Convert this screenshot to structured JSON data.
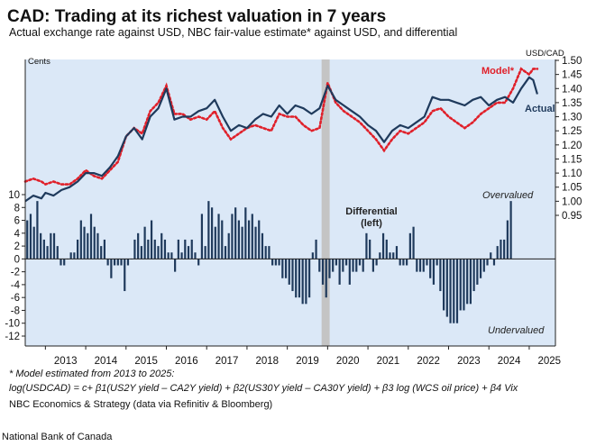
{
  "title": "CAD: Trading at its richest valuation in 7 years",
  "subtitle": "Actual exchange rate against USD, NBC fair-value estimate* against USD, and differential",
  "colors": {
    "panel": "#dbe8f7",
    "actual": "#1f3a5c",
    "model": "#e0202a",
    "bars": "#1f3a5c",
    "covid_band": "#c4c4c4"
  },
  "chart_data": {
    "type": "line+bar",
    "x_range": [
      2012.5,
      2025.65
    ],
    "x_ticks": [
      "2013",
      "2014",
      "2015",
      "2016",
      "2017",
      "2018",
      "2019",
      "2020",
      "2021",
      "2022",
      "2023",
      "2024",
      "2025"
    ],
    "left_axis": {
      "label": "Cents",
      "range": [
        -12,
        10
      ],
      "ticks": [
        "10",
        "8",
        "6",
        "4",
        "2",
        "0",
        "-2",
        "-4",
        "-6",
        "-8",
        "-10",
        "-12"
      ]
    },
    "right_axis": {
      "label": "USD/CAD",
      "range": [
        0.9,
        1.5
      ],
      "ticks": [
        "1.50",
        "1.45",
        "1.40",
        "1.35",
        "1.30",
        "1.25",
        "1.20",
        "1.15",
        "1.10",
        "1.05",
        "1.00",
        "0.95"
      ]
    },
    "shaded_period": [
      2019.85,
      2020.05
    ],
    "series": [
      {
        "name": "Actual",
        "axis": "right",
        "style": "solid",
        "x": [
          2012.5,
          2012.7,
          2012.9,
          2013.0,
          2013.2,
          2013.4,
          2013.6,
          2013.8,
          2014.0,
          2014.2,
          2014.4,
          2014.6,
          2014.8,
          2015.0,
          2015.2,
          2015.4,
          2015.6,
          2015.8,
          2016.0,
          2016.2,
          2016.4,
          2016.6,
          2016.8,
          2017.0,
          2017.2,
          2017.4,
          2017.6,
          2017.8,
          2018.0,
          2018.2,
          2018.4,
          2018.6,
          2018.8,
          2019.0,
          2019.2,
          2019.4,
          2019.6,
          2019.8,
          2020.0,
          2020.2,
          2020.4,
          2020.6,
          2020.8,
          2021.0,
          2021.2,
          2021.4,
          2021.6,
          2021.8,
          2022.0,
          2022.2,
          2022.4,
          2022.6,
          2022.8,
          2023.0,
          2023.2,
          2023.4,
          2023.6,
          2023.8,
          2024.0,
          2024.2,
          2024.4,
          2024.6,
          2024.8,
          2025.0,
          2025.1,
          2025.2
        ],
        "y": [
          1.0,
          1.02,
          1.01,
          1.03,
          1.02,
          1.04,
          1.05,
          1.07,
          1.1,
          1.1,
          1.09,
          1.12,
          1.16,
          1.23,
          1.26,
          1.22,
          1.3,
          1.33,
          1.4,
          1.29,
          1.3,
          1.3,
          1.32,
          1.33,
          1.36,
          1.3,
          1.25,
          1.27,
          1.26,
          1.29,
          1.31,
          1.3,
          1.34,
          1.31,
          1.34,
          1.33,
          1.31,
          1.33,
          1.41,
          1.36,
          1.34,
          1.32,
          1.3,
          1.27,
          1.25,
          1.21,
          1.25,
          1.27,
          1.26,
          1.28,
          1.3,
          1.37,
          1.36,
          1.36,
          1.35,
          1.34,
          1.36,
          1.37,
          1.34,
          1.36,
          1.37,
          1.35,
          1.4,
          1.44,
          1.43,
          1.38
        ]
      },
      {
        "name": "Model*",
        "axis": "right",
        "style": "dotted",
        "x": [
          2012.5,
          2012.7,
          2012.9,
          2013.0,
          2013.2,
          2013.4,
          2013.6,
          2013.8,
          2014.0,
          2014.2,
          2014.4,
          2014.6,
          2014.8,
          2015.0,
          2015.2,
          2015.4,
          2015.6,
          2015.8,
          2016.0,
          2016.2,
          2016.4,
          2016.6,
          2016.8,
          2017.0,
          2017.2,
          2017.4,
          2017.6,
          2017.8,
          2018.0,
          2018.2,
          2018.4,
          2018.6,
          2018.8,
          2019.0,
          2019.2,
          2019.4,
          2019.6,
          2019.8,
          2020.0,
          2020.2,
          2020.4,
          2020.6,
          2020.8,
          2021.0,
          2021.2,
          2021.4,
          2021.6,
          2021.8,
          2022.0,
          2022.2,
          2022.4,
          2022.6,
          2022.8,
          2023.0,
          2023.2,
          2023.4,
          2023.6,
          2023.8,
          2024.0,
          2024.2,
          2024.4,
          2024.6,
          2024.8,
          2025.0,
          2025.1,
          2025.2
        ],
        "y": [
          1.07,
          1.08,
          1.07,
          1.06,
          1.07,
          1.06,
          1.06,
          1.08,
          1.11,
          1.09,
          1.08,
          1.11,
          1.14,
          1.23,
          1.26,
          1.24,
          1.32,
          1.35,
          1.41,
          1.31,
          1.31,
          1.29,
          1.3,
          1.29,
          1.32,
          1.26,
          1.22,
          1.24,
          1.26,
          1.27,
          1.26,
          1.25,
          1.31,
          1.3,
          1.3,
          1.27,
          1.25,
          1.26,
          1.42,
          1.35,
          1.32,
          1.3,
          1.28,
          1.25,
          1.22,
          1.18,
          1.22,
          1.25,
          1.24,
          1.26,
          1.28,
          1.32,
          1.33,
          1.3,
          1.28,
          1.26,
          1.28,
          1.31,
          1.33,
          1.35,
          1.35,
          1.4,
          1.47,
          1.45,
          1.47,
          1.47
        ]
      },
      {
        "name": "Differential (left)",
        "axis": "left",
        "style": "bar",
        "x_start": 2012.55,
        "x_step": 0.0833,
        "values": [
          6,
          7,
          5,
          9,
          4,
          3,
          2,
          4,
          4,
          2,
          -1,
          -1,
          0,
          1,
          1,
          3,
          6,
          5,
          4,
          7,
          5,
          4,
          2,
          3,
          -1,
          -3,
          -1,
          -1,
          -1,
          -5,
          -1,
          0,
          3,
          4,
          2,
          5,
          3,
          6,
          3,
          2,
          4,
          3,
          1,
          1,
          -2,
          3,
          1,
          3,
          2,
          3,
          1,
          -1,
          7,
          2,
          9,
          8,
          5,
          7,
          6,
          2,
          4,
          7,
          8,
          6,
          5,
          8,
          6,
          7,
          5,
          6,
          4,
          2,
          2,
          -1,
          -1,
          -1,
          -3,
          -3,
          -4,
          -5,
          -6,
          -6,
          -7,
          -7,
          -6,
          1,
          3,
          -2,
          -4,
          -6,
          -3,
          -2,
          -1,
          -4,
          -2,
          -1,
          -4,
          -2,
          -2,
          -1,
          -2,
          4,
          3,
          -2,
          -1,
          1,
          4,
          3,
          1,
          1,
          2,
          -1,
          -1,
          -1,
          4,
          5,
          -2,
          -2,
          -2,
          -1,
          -3,
          -4,
          -1,
          -5,
          -8,
          -9,
          -10,
          -10,
          -10,
          -8,
          -8,
          -7,
          -7,
          -5,
          -4,
          -3,
          -2,
          -1,
          1,
          -1,
          2,
          3,
          3,
          6,
          9
        ]
      }
    ],
    "annotations": [
      {
        "text": "Model*",
        "color": "#e0202a",
        "bold": true
      },
      {
        "text": "Actual",
        "color": "#1f3a5c",
        "bold": true
      },
      {
        "text": "Overvalued",
        "color": "#222222",
        "italic": true
      },
      {
        "text": "Undervalued",
        "color": "#222222",
        "italic": true
      },
      {
        "text_lines": [
          "Differential",
          "(left)"
        ],
        "color": "#222222",
        "bold": true
      }
    ]
  },
  "footnote": {
    "line1": "* Model estimated from 2013 to 2025:",
    "line2": "log(USDCAD) = c+ β1(US2Y yield – CA2Y yield) + β2(US30Y yield – CA30Y yield) + β3 log (WCS oil price) + β4 Vix",
    "source": "NBC Economics & Strategy (data via Refinitiv & Bloomberg)"
  },
  "credit": "National Bank of Canada"
}
